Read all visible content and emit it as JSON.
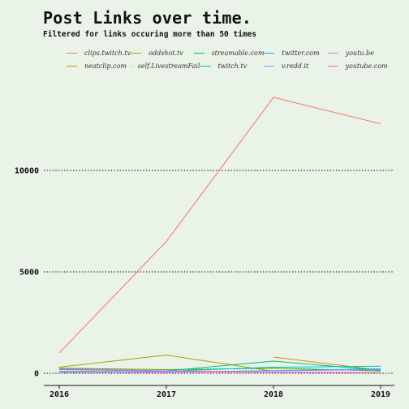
{
  "chart_data": {
    "type": "line",
    "title": "Post Links over time.",
    "subtitle": "Filtered for links occuring more than 50 times",
    "x": [
      2016,
      2017,
      2018,
      2019
    ],
    "xlim": [
      2016,
      2019
    ],
    "ylim": [
      0,
      14000
    ],
    "yticks": [
      0,
      5000,
      10000
    ],
    "grid": "horizontal dotted",
    "legend_position": "top",
    "series": [
      {
        "name": "clips.twitch.tv",
        "color": "#f8766d",
        "values": [
          1000,
          6500,
          13600,
          12300
        ]
      },
      {
        "name": "neatclip.com",
        "color": "#d89000",
        "values": [
          null,
          null,
          800,
          150
        ]
      },
      {
        "name": "oddshot.tv",
        "color": "#a3a500",
        "values": [
          300,
          900,
          100,
          null
        ]
      },
      {
        "name": "self.LivestreamFail",
        "color": "#39b600",
        "values": [
          250,
          180,
          250,
          120
        ]
      },
      {
        "name": "streamable.com",
        "color": "#00bf7d",
        "values": [
          180,
          120,
          600,
          150
        ]
      },
      {
        "name": "twitch.tv",
        "color": "#00bfc4",
        "values": [
          200,
          100,
          300,
          350
        ]
      },
      {
        "name": "twitter.com",
        "color": "#00b0f6",
        "values": [
          80,
          60,
          130,
          220
        ]
      },
      {
        "name": "v.redd.it",
        "color": "#9590ff",
        "values": [
          50,
          40,
          120,
          180
        ]
      },
      {
        "name": "youtu.be",
        "color": "#e76bf3",
        "values": [
          220,
          120,
          60,
          40
        ]
      },
      {
        "name": "youtube.com",
        "color": "#ff62bc",
        "values": [
          100,
          70,
          50,
          30
        ]
      }
    ]
  }
}
